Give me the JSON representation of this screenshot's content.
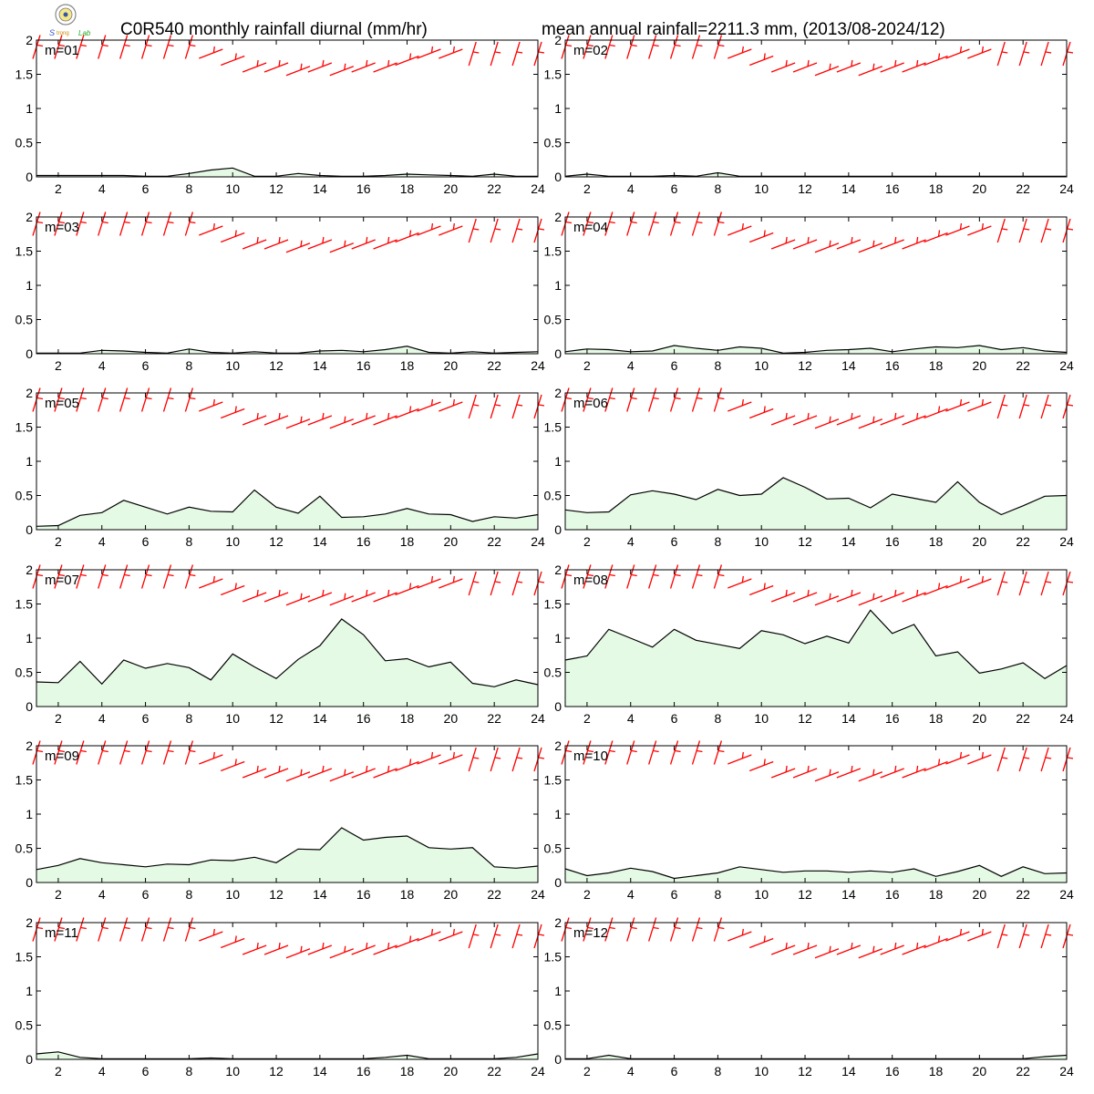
{
  "title_left": "C0R540 monthly rainfall diurnal (mm/hr)",
  "title_right": "mean annual rainfall=2211.3 mm, (2013/08-2024/12)",
  "colors": {
    "fill": "#e5fae5",
    "line": "#000000",
    "wind": "#ff0000"
  },
  "chart_data": {
    "type": "area",
    "x": [
      1,
      2,
      3,
      4,
      5,
      6,
      7,
      8,
      9,
      10,
      11,
      12,
      13,
      14,
      15,
      16,
      17,
      18,
      19,
      20,
      21,
      22,
      23,
      24
    ],
    "xticks": [
      "2",
      "4",
      "6",
      "8",
      "10",
      "12",
      "14",
      "16",
      "18",
      "20",
      "22",
      "24"
    ],
    "yticks": [
      "0",
      "0.5",
      "1",
      "1.5",
      "2"
    ],
    "xlim": [
      1,
      24
    ],
    "ylim": [
      0,
      2
    ],
    "grid": false,
    "series": [
      {
        "name": "m=01",
        "values": [
          0.02,
          0.02,
          0.02,
          0.02,
          0.02,
          0.01,
          0.01,
          0.05,
          0.1,
          0.13,
          0.01,
          0.01,
          0.05,
          0.02,
          0.01,
          0.01,
          0.02,
          0.04,
          0.03,
          0.02,
          0.01,
          0.04,
          0.01,
          0.01
        ]
      },
      {
        "name": "m=02",
        "values": [
          0.01,
          0.04,
          0.01,
          0.01,
          0.01,
          0.02,
          0.01,
          0.06,
          0.01,
          0.01,
          0.01,
          0.01,
          0.01,
          0.01,
          0.01,
          0.01,
          0.01,
          0.01,
          0.01,
          0.01,
          0.01,
          0.01,
          0.01,
          0.01
        ]
      },
      {
        "name": "m=03",
        "values": [
          0.01,
          0.01,
          0.01,
          0.05,
          0.04,
          0.02,
          0.01,
          0.07,
          0.02,
          0.01,
          0.03,
          0.01,
          0.01,
          0.04,
          0.05,
          0.03,
          0.06,
          0.11,
          0.02,
          0.01,
          0.03,
          0.01,
          0.02,
          0.03
        ]
      },
      {
        "name": "m=04",
        "values": [
          0.03,
          0.07,
          0.06,
          0.03,
          0.04,
          0.12,
          0.08,
          0.05,
          0.1,
          0.08,
          0.01,
          0.02,
          0.05,
          0.06,
          0.08,
          0.03,
          0.07,
          0.1,
          0.09,
          0.12,
          0.06,
          0.09,
          0.04,
          0.02
        ]
      },
      {
        "name": "m=05",
        "values": [
          0.05,
          0.06,
          0.21,
          0.25,
          0.43,
          0.33,
          0.23,
          0.33,
          0.27,
          0.26,
          0.58,
          0.33,
          0.24,
          0.49,
          0.18,
          0.19,
          0.23,
          0.31,
          0.23,
          0.22,
          0.12,
          0.19,
          0.17,
          0.22
        ]
      },
      {
        "name": "m=06",
        "values": [
          0.29,
          0.25,
          0.26,
          0.51,
          0.57,
          0.52,
          0.44,
          0.59,
          0.5,
          0.52,
          0.76,
          0.62,
          0.45,
          0.46,
          0.32,
          0.52,
          0.46,
          0.4,
          0.7,
          0.4,
          0.22,
          0.35,
          0.49,
          0.5
        ]
      },
      {
        "name": "m=07",
        "values": [
          0.36,
          0.35,
          0.66,
          0.33,
          0.68,
          0.56,
          0.63,
          0.57,
          0.39,
          0.77,
          0.58,
          0.41,
          0.69,
          0.89,
          1.28,
          1.05,
          0.67,
          0.7,
          0.58,
          0.65,
          0.34,
          0.29,
          0.39,
          0.32
        ]
      },
      {
        "name": "m=08",
        "values": [
          0.68,
          0.74,
          1.13,
          1.0,
          0.87,
          1.13,
          0.97,
          0.91,
          0.85,
          1.11,
          1.05,
          0.92,
          1.03,
          0.93,
          1.41,
          1.07,
          1.2,
          0.74,
          0.8,
          0.49,
          0.55,
          0.64,
          0.41,
          0.6
        ]
      },
      {
        "name": "m=09",
        "values": [
          0.19,
          0.25,
          0.35,
          0.29,
          0.26,
          0.23,
          0.27,
          0.26,
          0.33,
          0.32,
          0.37,
          0.29,
          0.49,
          0.48,
          0.8,
          0.62,
          0.66,
          0.68,
          0.51,
          0.49,
          0.51,
          0.23,
          0.21,
          0.24
        ]
      },
      {
        "name": "m=10",
        "values": [
          0.2,
          0.1,
          0.14,
          0.21,
          0.16,
          0.06,
          0.1,
          0.14,
          0.23,
          0.19,
          0.15,
          0.17,
          0.17,
          0.15,
          0.17,
          0.15,
          0.2,
          0.09,
          0.16,
          0.25,
          0.09,
          0.23,
          0.13,
          0.14
        ]
      },
      {
        "name": "m=11",
        "values": [
          0.08,
          0.11,
          0.03,
          0.01,
          0.01,
          0.01,
          0.01,
          0.01,
          0.02,
          0.01,
          0.01,
          0.01,
          0.01,
          0.01,
          0.01,
          0.01,
          0.03,
          0.06,
          0.01,
          0.01,
          0.01,
          0.01,
          0.03,
          0.08
        ]
      },
      {
        "name": "m=12",
        "values": [
          0.01,
          0.01,
          0.06,
          0.01,
          0.01,
          0.01,
          0.01,
          0.01,
          0.01,
          0.01,
          0.01,
          0.01,
          0.01,
          0.01,
          0.01,
          0.01,
          0.01,
          0.01,
          0.01,
          0.01,
          0.01,
          0.01,
          0.04,
          0.06
        ]
      }
    ],
    "wind_barbs_y": [
      1.9,
      1.9,
      1.9,
      1.9,
      1.9,
      1.9,
      1.9,
      1.9,
      1.8,
      1.7,
      1.6,
      1.6,
      1.55,
      1.6,
      1.55,
      1.6,
      1.6,
      1.7,
      1.8,
      1.8,
      1.8,
      1.8,
      1.8,
      1.8
    ]
  }
}
